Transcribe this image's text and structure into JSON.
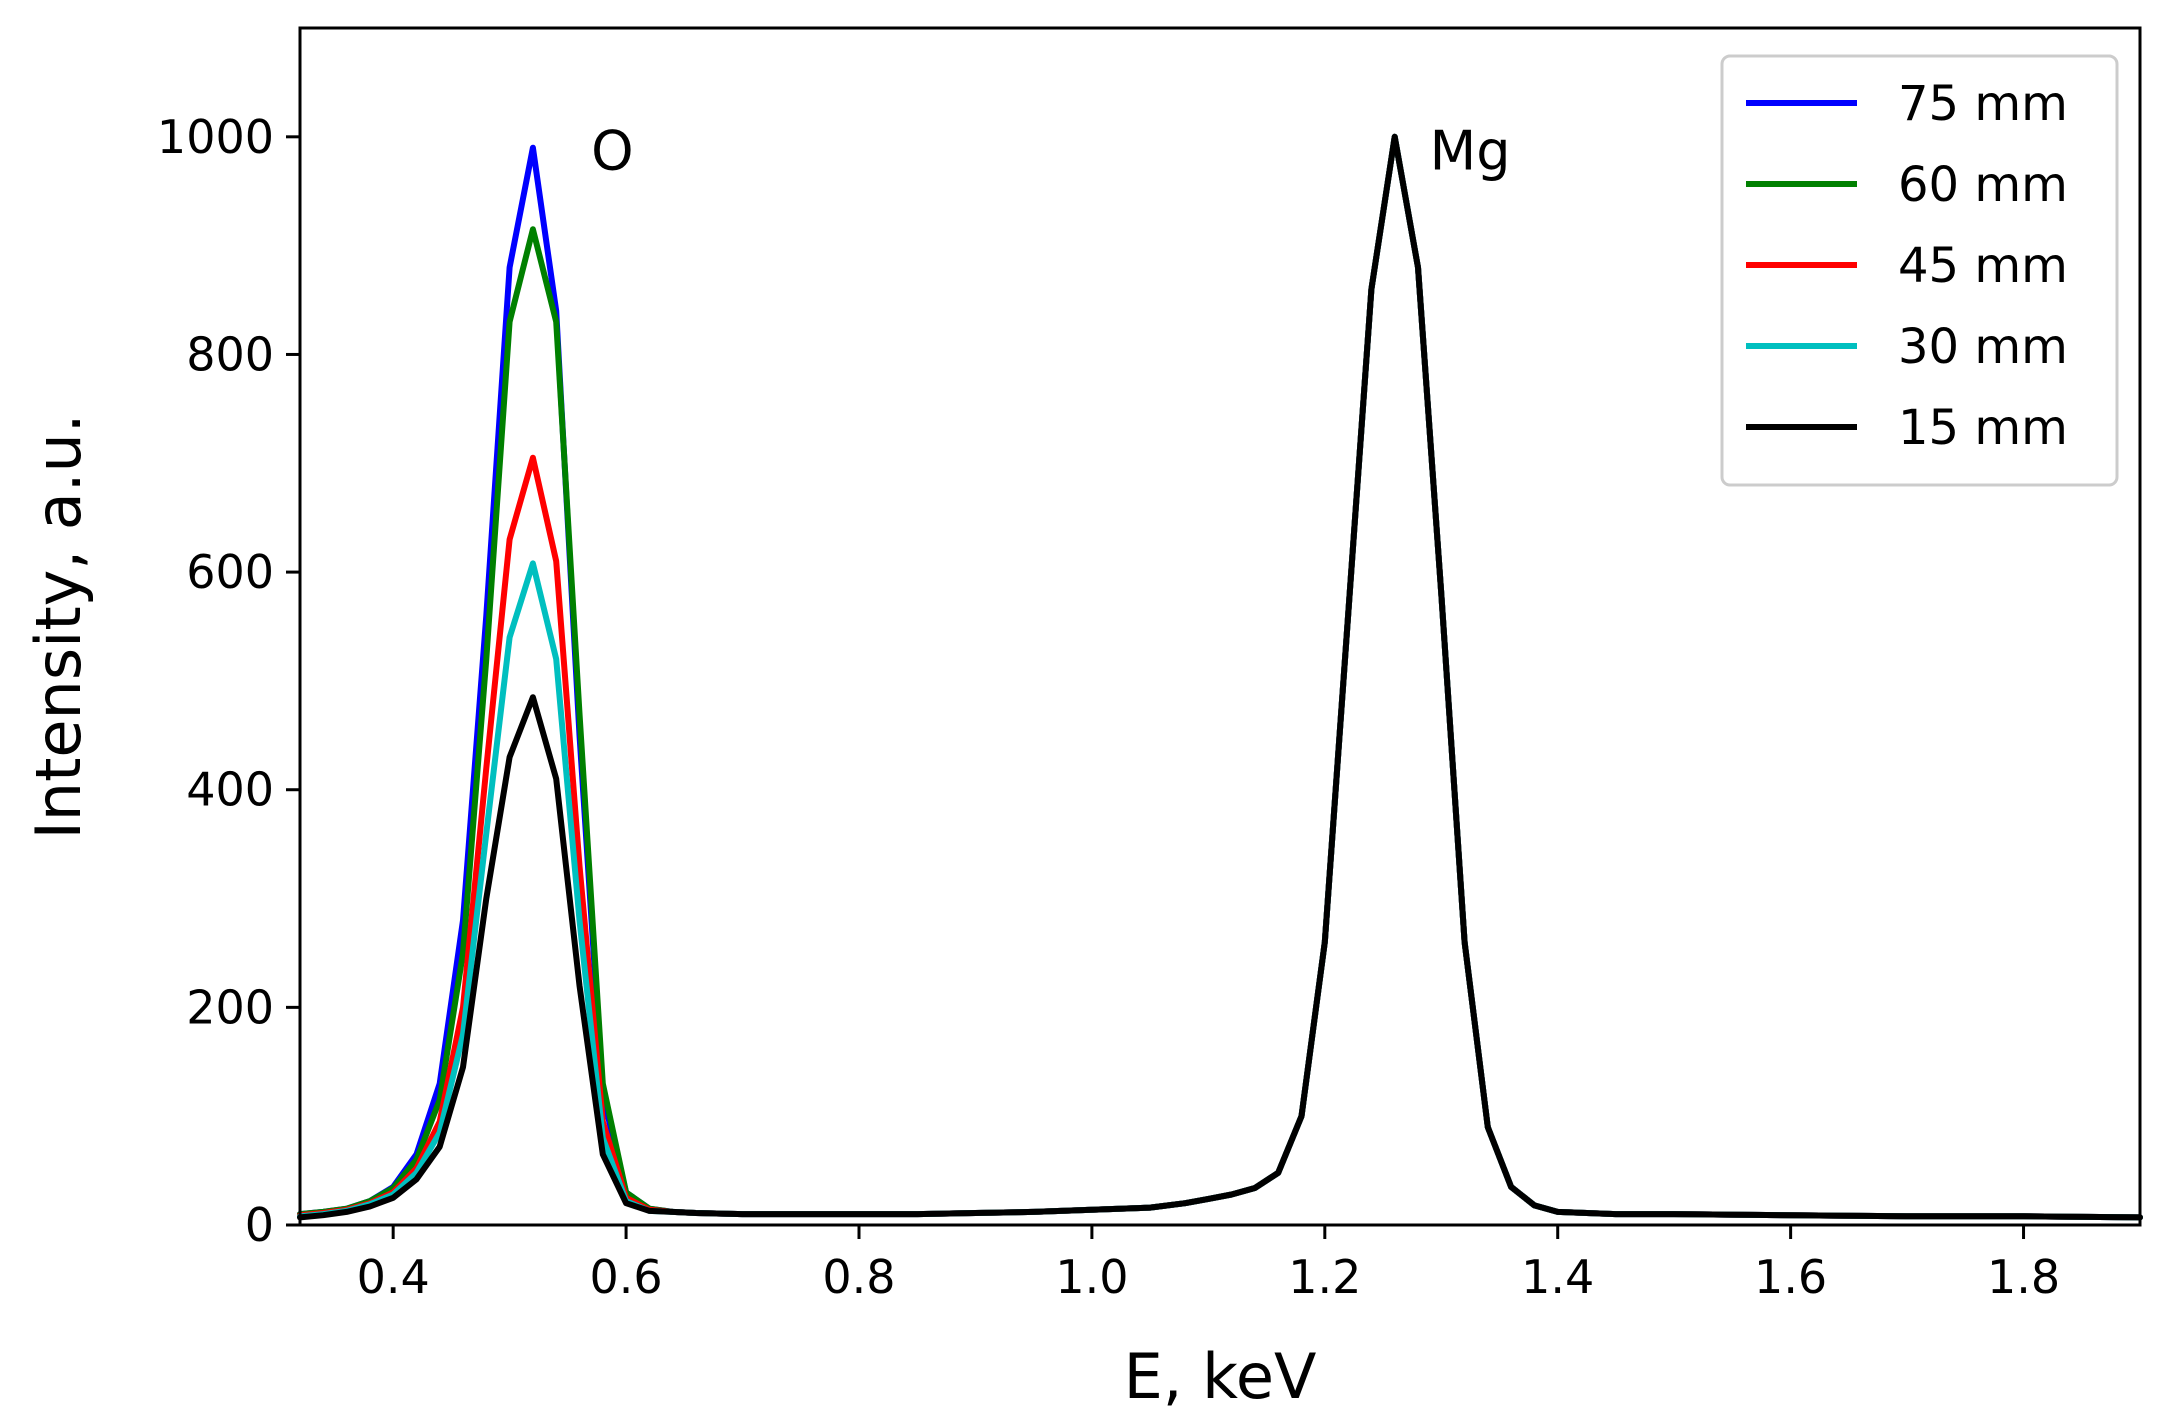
{
  "chart_data": {
    "type": "line",
    "title": "",
    "xlabel": "E, keV",
    "ylabel": "Intensity, a.u.",
    "xlim": [
      0.32,
      1.9
    ],
    "ylim": [
      0,
      1100
    ],
    "grid": false,
    "legend_position": "top-right",
    "xticks": [
      0.4,
      0.6,
      0.8,
      1.0,
      1.2,
      1.4,
      1.6,
      1.8
    ],
    "xtick_labels": [
      "0.4",
      "0.6",
      "0.8",
      "1.0",
      "1.2",
      "1.4",
      "1.6",
      "1.8"
    ],
    "yticks": [
      0,
      200,
      400,
      600,
      800,
      1000
    ],
    "ytick_labels": [
      "0",
      "200",
      "400",
      "600",
      "800",
      "1000"
    ],
    "x": [
      0.32,
      0.34,
      0.36,
      0.38,
      0.4,
      0.42,
      0.44,
      0.46,
      0.48,
      0.5,
      0.52,
      0.54,
      0.56,
      0.58,
      0.6,
      0.62,
      0.64,
      0.66,
      0.7,
      0.75,
      0.8,
      0.85,
      0.9,
      0.95,
      1.0,
      1.05,
      1.08,
      1.1,
      1.12,
      1.14,
      1.16,
      1.18,
      1.2,
      1.22,
      1.24,
      1.26,
      1.28,
      1.3,
      1.32,
      1.34,
      1.36,
      1.38,
      1.4,
      1.45,
      1.5,
      1.6,
      1.7,
      1.8,
      1.9
    ],
    "series": [
      {
        "name": "75 mm",
        "color": "#0000ff",
        "values": [
          10,
          12,
          15,
          22,
          35,
          65,
          130,
          280,
          560,
          880,
          990,
          840,
          450,
          120,
          30,
          15,
          12,
          11,
          10,
          10,
          10,
          10,
          11,
          12,
          14,
          16,
          20,
          24,
          28,
          34,
          48,
          100,
          260,
          560,
          860,
          1000,
          880,
          580,
          260,
          90,
          35,
          18,
          12,
          10,
          10,
          9,
          8,
          8,
          7
        ]
      },
      {
        "name": "60 mm",
        "color": "#008000",
        "values": [
          10,
          12,
          15,
          22,
          34,
          60,
          115,
          250,
          520,
          830,
          915,
          830,
          470,
          130,
          30,
          15,
          12,
          11,
          10,
          10,
          10,
          10,
          11,
          12,
          14,
          16,
          20,
          24,
          28,
          34,
          48,
          100,
          260,
          560,
          860,
          1000,
          880,
          580,
          260,
          90,
          35,
          18,
          12,
          10,
          10,
          9,
          8,
          8,
          7
        ]
      },
      {
        "name": "45 mm",
        "color": "#ff0000",
        "values": [
          9,
          11,
          14,
          20,
          30,
          52,
          95,
          200,
          420,
          630,
          705,
          610,
          330,
          95,
          25,
          14,
          12,
          11,
          10,
          10,
          10,
          10,
          11,
          12,
          14,
          16,
          20,
          24,
          28,
          34,
          48,
          100,
          260,
          560,
          860,
          1000,
          880,
          580,
          260,
          90,
          35,
          18,
          12,
          10,
          10,
          9,
          8,
          8,
          7
        ]
      },
      {
        "name": "30 mm",
        "color": "#00bfbf",
        "values": [
          8,
          10,
          13,
          19,
          28,
          48,
          85,
          175,
          360,
          540,
          608,
          520,
          280,
          80,
          22,
          13,
          12,
          11,
          10,
          10,
          10,
          10,
          11,
          12,
          14,
          16,
          20,
          24,
          28,
          34,
          48,
          100,
          260,
          560,
          860,
          1000,
          880,
          580,
          260,
          90,
          35,
          18,
          12,
          10,
          10,
          9,
          8,
          8,
          7
        ]
      },
      {
        "name": "15 mm",
        "color": "#000000",
        "values": [
          7,
          9,
          12,
          17,
          25,
          42,
          72,
          145,
          300,
          430,
          485,
          410,
          220,
          65,
          20,
          13,
          12,
          11,
          10,
          10,
          10,
          10,
          11,
          12,
          14,
          16,
          20,
          24,
          28,
          34,
          48,
          100,
          260,
          560,
          860,
          1000,
          880,
          580,
          260,
          90,
          35,
          18,
          12,
          10,
          10,
          9,
          8,
          8,
          7
        ]
      }
    ],
    "annotations": [
      {
        "text": "O",
        "x": 0.57,
        "y": 970
      },
      {
        "text": "Mg",
        "x": 1.29,
        "y": 970
      }
    ]
  }
}
